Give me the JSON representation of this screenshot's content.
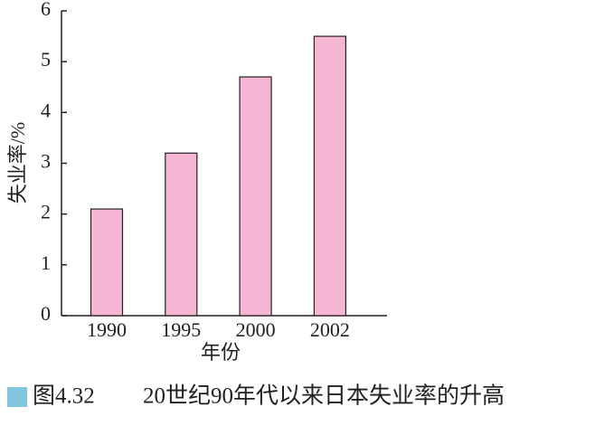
{
  "chart_data": {
    "type": "bar",
    "figure_label": "图4.32",
    "title": "20世纪90年代以来日本失业率的升高",
    "x_label": "年份",
    "y_label": "失业率/%",
    "categories": [
      "1990",
      "1995",
      "2000",
      "2002"
    ],
    "values": [
      2.1,
      3.2,
      4.7,
      5.5
    ],
    "color": "#f4b6d2",
    "ylim": [
      0,
      6
    ],
    "yticks": [
      0,
      1,
      2,
      3,
      4,
      5,
      6
    ],
    "grid": false
  }
}
